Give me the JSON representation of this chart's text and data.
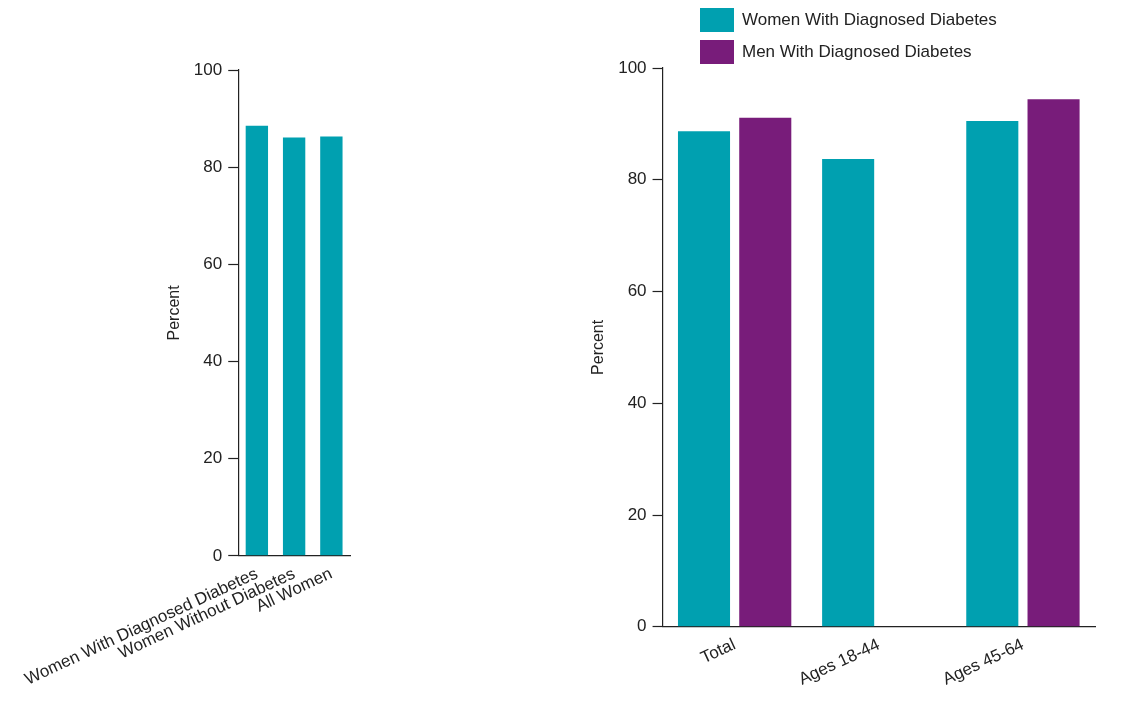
{
  "chart_data": [
    {
      "type": "bar",
      "categories": [
        "Women With Diagnosed Diabetes",
        "Women Without Diabetes",
        "All Women"
      ],
      "values": [
        88.5,
        86.1,
        86.3
      ],
      "color": "#00a0b0",
      "ylabel": "Percent",
      "ylim": [
        0,
        100
      ],
      "yticks": [
        0,
        20,
        40,
        60,
        80,
        100
      ],
      "grid": false,
      "legend": false
    },
    {
      "type": "bar",
      "categories": [
        "Total",
        "Ages 18-44",
        "Ages 45-64"
      ],
      "series": [
        {
          "name": "Women With Diagnosed Diabetes",
          "color": "#00a0b0",
          "values": [
            88.7,
            83.7,
            90.5
          ]
        },
        {
          "name": "Men With Diagnosed Diabetes",
          "color": "#781c7a",
          "values": [
            91.1,
            null,
            94.4
          ]
        }
      ],
      "ylabel": "Percent",
      "ylim": [
        0,
        100
      ],
      "yticks": [
        0,
        20,
        40,
        60,
        80,
        100
      ],
      "grid": false,
      "legend": "top left"
    }
  ]
}
